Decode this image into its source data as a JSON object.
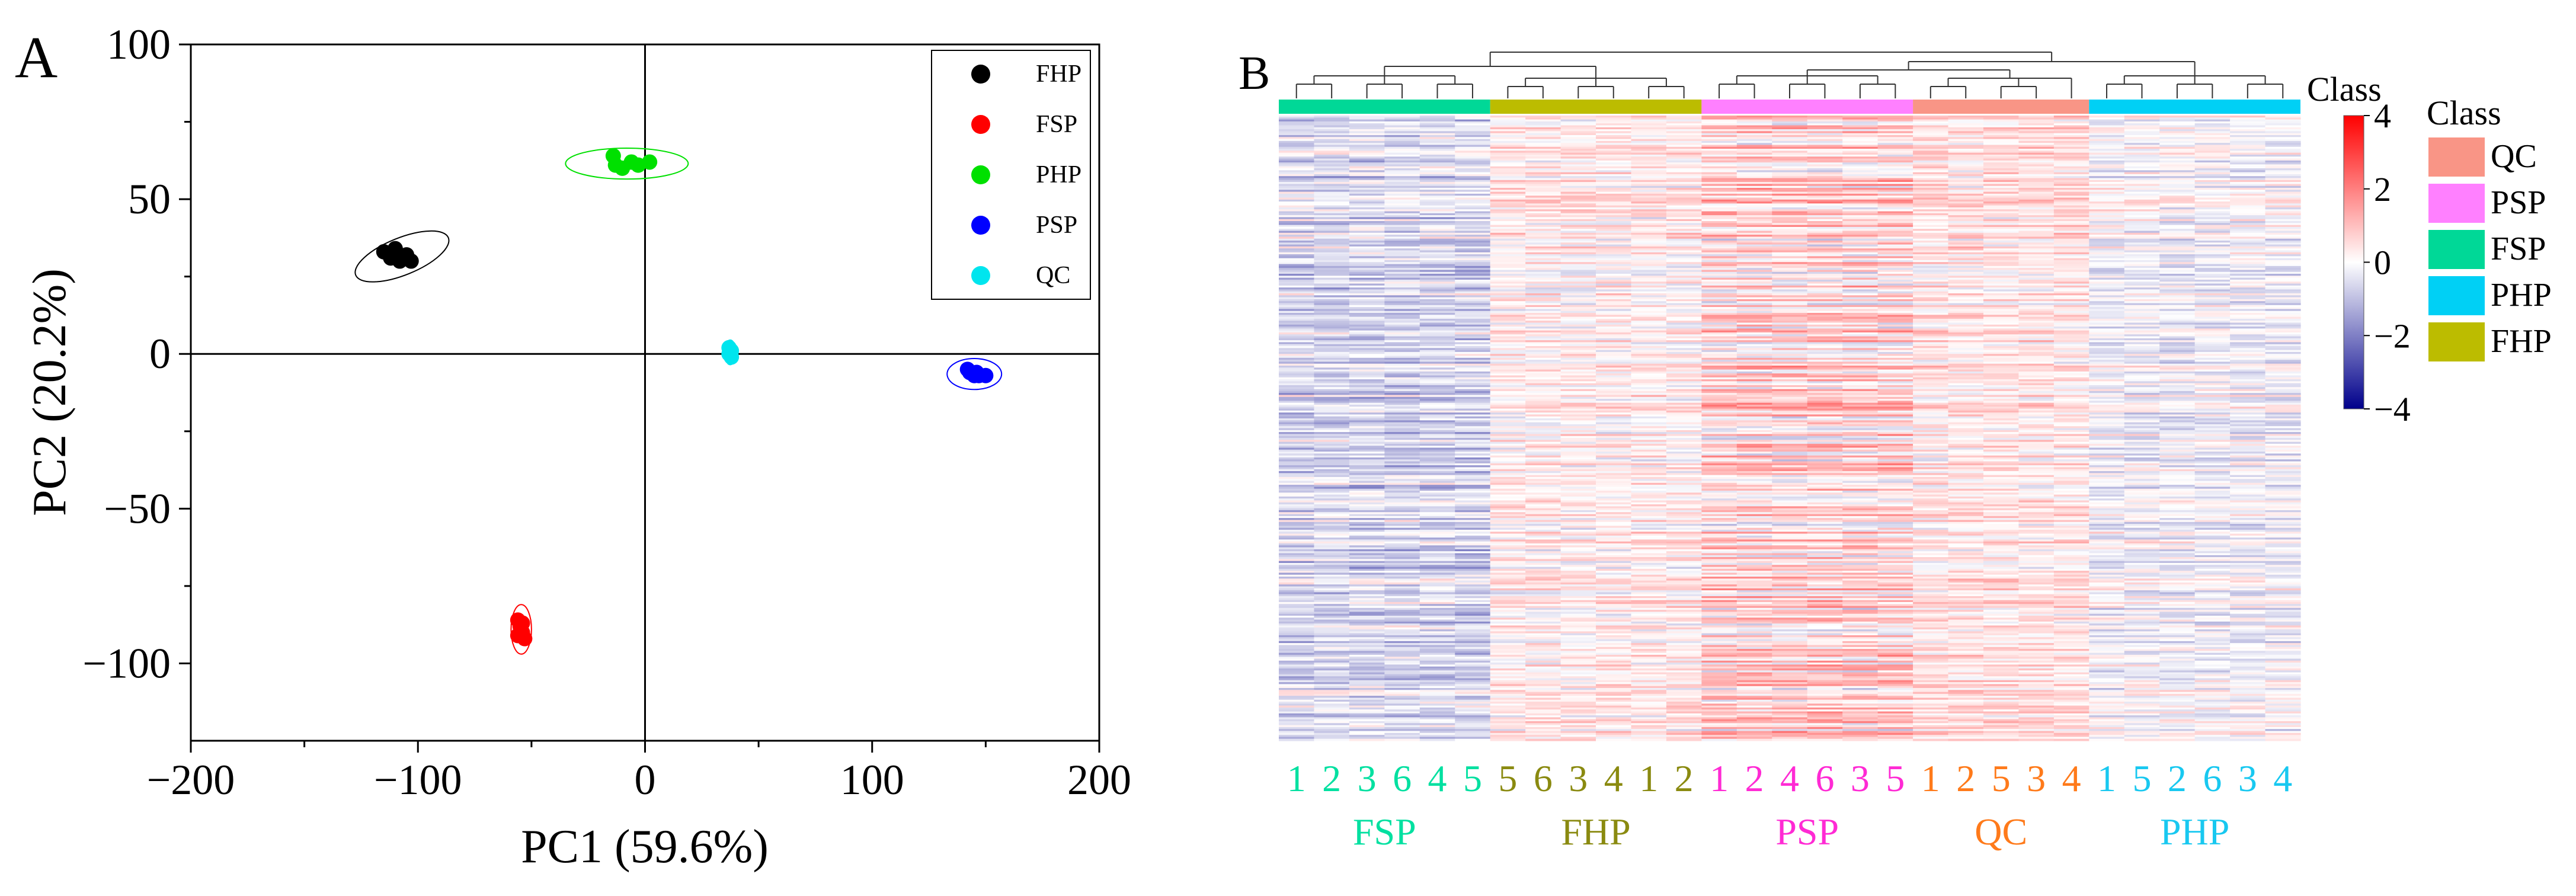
{
  "figure": {
    "panel_a_letter": "A",
    "panel_b_letter": "B"
  },
  "chart_data": [
    {
      "type": "scatter",
      "panel": "A",
      "title": "",
      "xlabel": "PC1 (59.6%)",
      "ylabel": "PC2 (20.2%)",
      "xlim": [
        -200,
        200
      ],
      "ylim": [
        -125,
        100
      ],
      "xticks": [
        -200,
        -100,
        0,
        100,
        200
      ],
      "yticks": [
        -100,
        -50,
        0,
        50,
        100
      ],
      "xtick_labels": [
        "−200",
        "−100",
        "0",
        "100",
        "200"
      ],
      "ytick_labels": [
        "−100",
        "−50",
        "0",
        "50",
        "100"
      ],
      "grid": false,
      "reference_lines": [
        "x = 0",
        "y = 0"
      ],
      "legend_position": "top-right",
      "series": [
        {
          "name": "FHP",
          "color": "#000000",
          "points": [
            [
              -115,
              33
            ],
            [
              -112,
              31
            ],
            [
              -110,
              34
            ],
            [
              -108,
              30
            ],
            [
              -105,
              32
            ],
            [
              -103,
              30
            ]
          ],
          "ellipse": {
            "cx": -107,
            "cy": 31.5,
            "rx": 22,
            "ry": 6,
            "angle_deg": -22
          }
        },
        {
          "name": "FSP",
          "color": "#ff0000",
          "points": [
            [
              -56,
              -86
            ],
            [
              -55,
              -88
            ],
            [
              -54,
              -90
            ],
            [
              -56,
              -91
            ],
            [
              -54,
              -87
            ],
            [
              -53,
              -92
            ]
          ],
          "ellipse": {
            "cx": -54.5,
            "cy": -89,
            "rx": 4.5,
            "ry": 8,
            "angle_deg": 0
          }
        },
        {
          "name": "PHP",
          "color": "#00e000",
          "points": [
            [
              -14,
              64
            ],
            [
              -13,
              61
            ],
            [
              -10,
              60
            ],
            [
              -6,
              62
            ],
            [
              -3,
              61
            ],
            [
              2,
              62
            ]
          ],
          "ellipse": {
            "cx": -8,
            "cy": 61.5,
            "rx": 27,
            "ry": 5,
            "angle_deg": 0
          }
        },
        {
          "name": "PSP",
          "color": "#0000ff",
          "points": [
            [
              142,
              -5
            ],
            [
              143,
              -6
            ],
            [
              145,
              -7
            ],
            [
              146,
              -6
            ],
            [
              147,
              -7
            ],
            [
              150,
              -7
            ]
          ],
          "ellipse": {
            "cx": 145,
            "cy": -6.5,
            "rx": 12,
            "ry": 5,
            "angle_deg": 0
          }
        },
        {
          "name": "QC",
          "color": "#00e5ee",
          "points": [
            [
              37,
              0
            ],
            [
              37,
              2
            ],
            [
              38,
              -1
            ],
            [
              38,
              1
            ]
          ],
          "ellipse": {
            "cx": 37.5,
            "cy": 0.5,
            "rx": 2.5,
            "ry": 4,
            "angle_deg": 0
          }
        }
      ]
    },
    {
      "type": "heatmap",
      "panel": "B",
      "title": "",
      "colorbar_title": "Class",
      "colorbar_range": [
        -4,
        4
      ],
      "colorbar_ticks": [
        4,
        2,
        0,
        -2,
        -4
      ],
      "colorbar_tick_labels": [
        "4",
        "2",
        "0",
        "−2",
        "−4"
      ],
      "colormap": [
        "#00008b",
        "#ffffff",
        "#ff0000"
      ],
      "legend_title": "Class",
      "legend": [
        {
          "name": "QC",
          "color": "#f99586"
        },
        {
          "name": "PSP",
          "color": "#ff80ff"
        },
        {
          "name": "FSP",
          "color": "#00d897"
        },
        {
          "name": "PHP",
          "color": "#00d0f5"
        },
        {
          "name": "FHP",
          "color": "#bcbc00"
        }
      ],
      "groups": [
        {
          "name": "FSP",
          "color": "#00d897",
          "label_color": "#00e0a0",
          "samples": [
            "1",
            "2",
            "3",
            "6",
            "4",
            "5"
          ],
          "mean_level": -0.6
        },
        {
          "name": "FHP",
          "color": "#bcbc00",
          "label_color": "#8a8a10",
          "samples": [
            "5",
            "6",
            "3",
            "4",
            "1",
            "2"
          ],
          "mean_level": 0.25
        },
        {
          "name": "PSP",
          "color": "#ff80ff",
          "label_color": "#ff2ad4",
          "samples": [
            "1",
            "2",
            "4",
            "6",
            "3",
            "5"
          ],
          "mean_level": 0.55
        },
        {
          "name": "QC",
          "color": "#f99586",
          "label_color": "#ff7a1a",
          "samples": [
            "1",
            "2",
            "5",
            "3",
            "4"
          ],
          "mean_level": 0.4
        },
        {
          "name": "PHP",
          "color": "#00d0f5",
          "label_color": "#18c8f0",
          "samples": [
            "1",
            "5",
            "2",
            "6",
            "3",
            "4"
          ],
          "mean_level": -0.15
        }
      ]
    }
  ]
}
